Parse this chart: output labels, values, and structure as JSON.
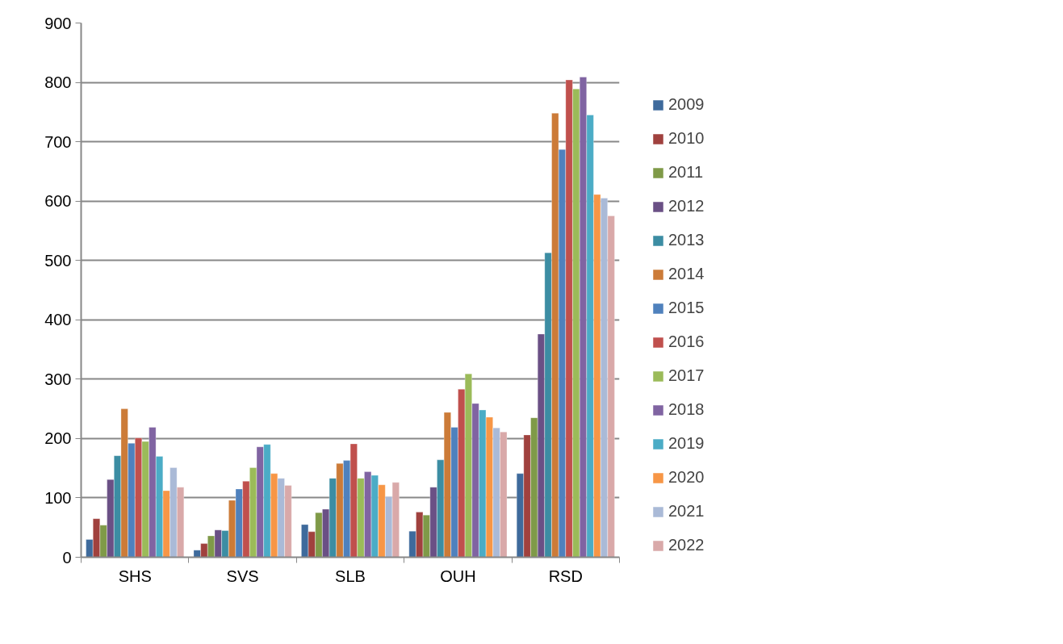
{
  "chart_data": {
    "type": "bar",
    "categories": [
      "SHS",
      "SVS",
      "SLB",
      "OUH",
      "RSD"
    ],
    "ylim": [
      0,
      900
    ],
    "yticks": [
      0,
      100,
      200,
      300,
      400,
      500,
      600,
      700,
      800,
      900
    ],
    "grid": "y",
    "legend": "right",
    "series": [
      {
        "name": "2009",
        "color": "#3e6a9c",
        "values": [
          30,
          12,
          55,
          44,
          141
        ]
      },
      {
        "name": "2010",
        "color": "#a0413e",
        "values": [
          65,
          23,
          43,
          76,
          206
        ]
      },
      {
        "name": "2011",
        "color": "#7f9a48",
        "values": [
          54,
          36,
          75,
          71,
          235
        ]
      },
      {
        "name": "2012",
        "color": "#6a5085",
        "values": [
          131,
          46,
          81,
          118,
          376
        ]
      },
      {
        "name": "2013",
        "color": "#3c8da3",
        "values": [
          171,
          45,
          133,
          164,
          513
        ]
      },
      {
        "name": "2014",
        "color": "#cc7b38",
        "values": [
          250,
          96,
          158,
          244,
          748
        ]
      },
      {
        "name": "2015",
        "color": "#4f81bd",
        "values": [
          192,
          115,
          163,
          219,
          687
        ]
      },
      {
        "name": "2016",
        "color": "#c0504d",
        "values": [
          201,
          128,
          191,
          283,
          804
        ]
      },
      {
        "name": "2017",
        "color": "#9bbb59",
        "values": [
          195,
          151,
          133,
          309,
          789
        ]
      },
      {
        "name": "2018",
        "color": "#8064a2",
        "values": [
          219,
          186,
          144,
          259,
          809
        ]
      },
      {
        "name": "2019",
        "color": "#4bacc6",
        "values": [
          170,
          190,
          138,
          248,
          745
        ]
      },
      {
        "name": "2020",
        "color": "#f79646",
        "values": [
          112,
          141,
          122,
          236,
          611
        ]
      },
      {
        "name": "2021",
        "color": "#aabad7",
        "values": [
          151,
          133,
          102,
          218,
          605
        ]
      },
      {
        "name": "2022",
        "color": "#d9a9a9",
        "values": [
          118,
          121,
          126,
          211,
          575
        ]
      }
    ]
  }
}
